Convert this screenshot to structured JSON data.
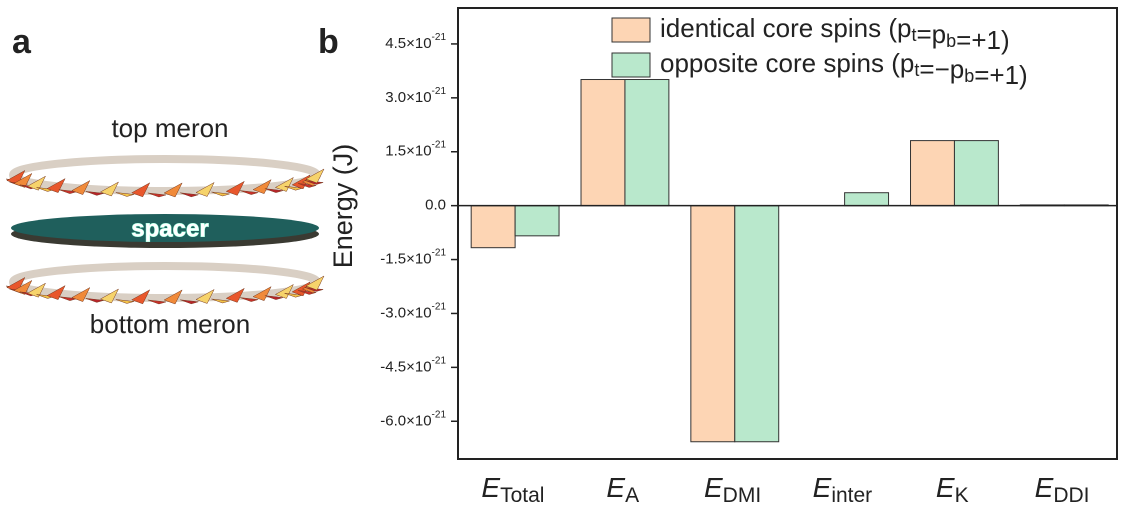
{
  "diagram": {
    "panel_label": "a",
    "top_label": "top meron",
    "spacer_label": "spacer",
    "bottom_label": "bottom meron"
  },
  "chart_data": {
    "type": "bar",
    "panel_label": "b",
    "y_label": "Energy (J)",
    "categories": [
      "ETotal",
      "EA",
      "EDMI",
      "Einter",
      "EK",
      "EDDI"
    ],
    "series": [
      {
        "name": "identical core spins (pt=pb=+1)",
        "color": "#fdd5b4",
        "values": [
          -1.17e-21,
          3.51e-21,
          -6.57e-21,
          0,
          1.81e-21,
          2e-23
        ]
      },
      {
        "name": "opposite core spins (pt=−pb=+1)",
        "color": "#b9e8cc",
        "values": [
          -8.4e-22,
          3.51e-21,
          -6.57e-21,
          3.6e-22,
          1.81e-21,
          2e-23
        ]
      }
    ],
    "ylim": [
      -7.05e-21,
      5.5e-21
    ],
    "yticks": [
      {
        "value": -6e-21,
        "label": "-6.0×10-21"
      },
      {
        "value": -4.5e-21,
        "label": "-4.5×10-21"
      },
      {
        "value": -3e-21,
        "label": "-3.0×10-21"
      },
      {
        "value": -1.5e-21,
        "label": "-1.5×10-21"
      },
      {
        "value": 0,
        "label": "0.0"
      },
      {
        "value": 1.5e-21,
        "label": "1.5×10-21"
      },
      {
        "value": 3e-21,
        "label": "3.0×10-21"
      },
      {
        "value": 4.5e-21,
        "label": "4.5×10-21"
      }
    ],
    "legend": "top-right"
  }
}
